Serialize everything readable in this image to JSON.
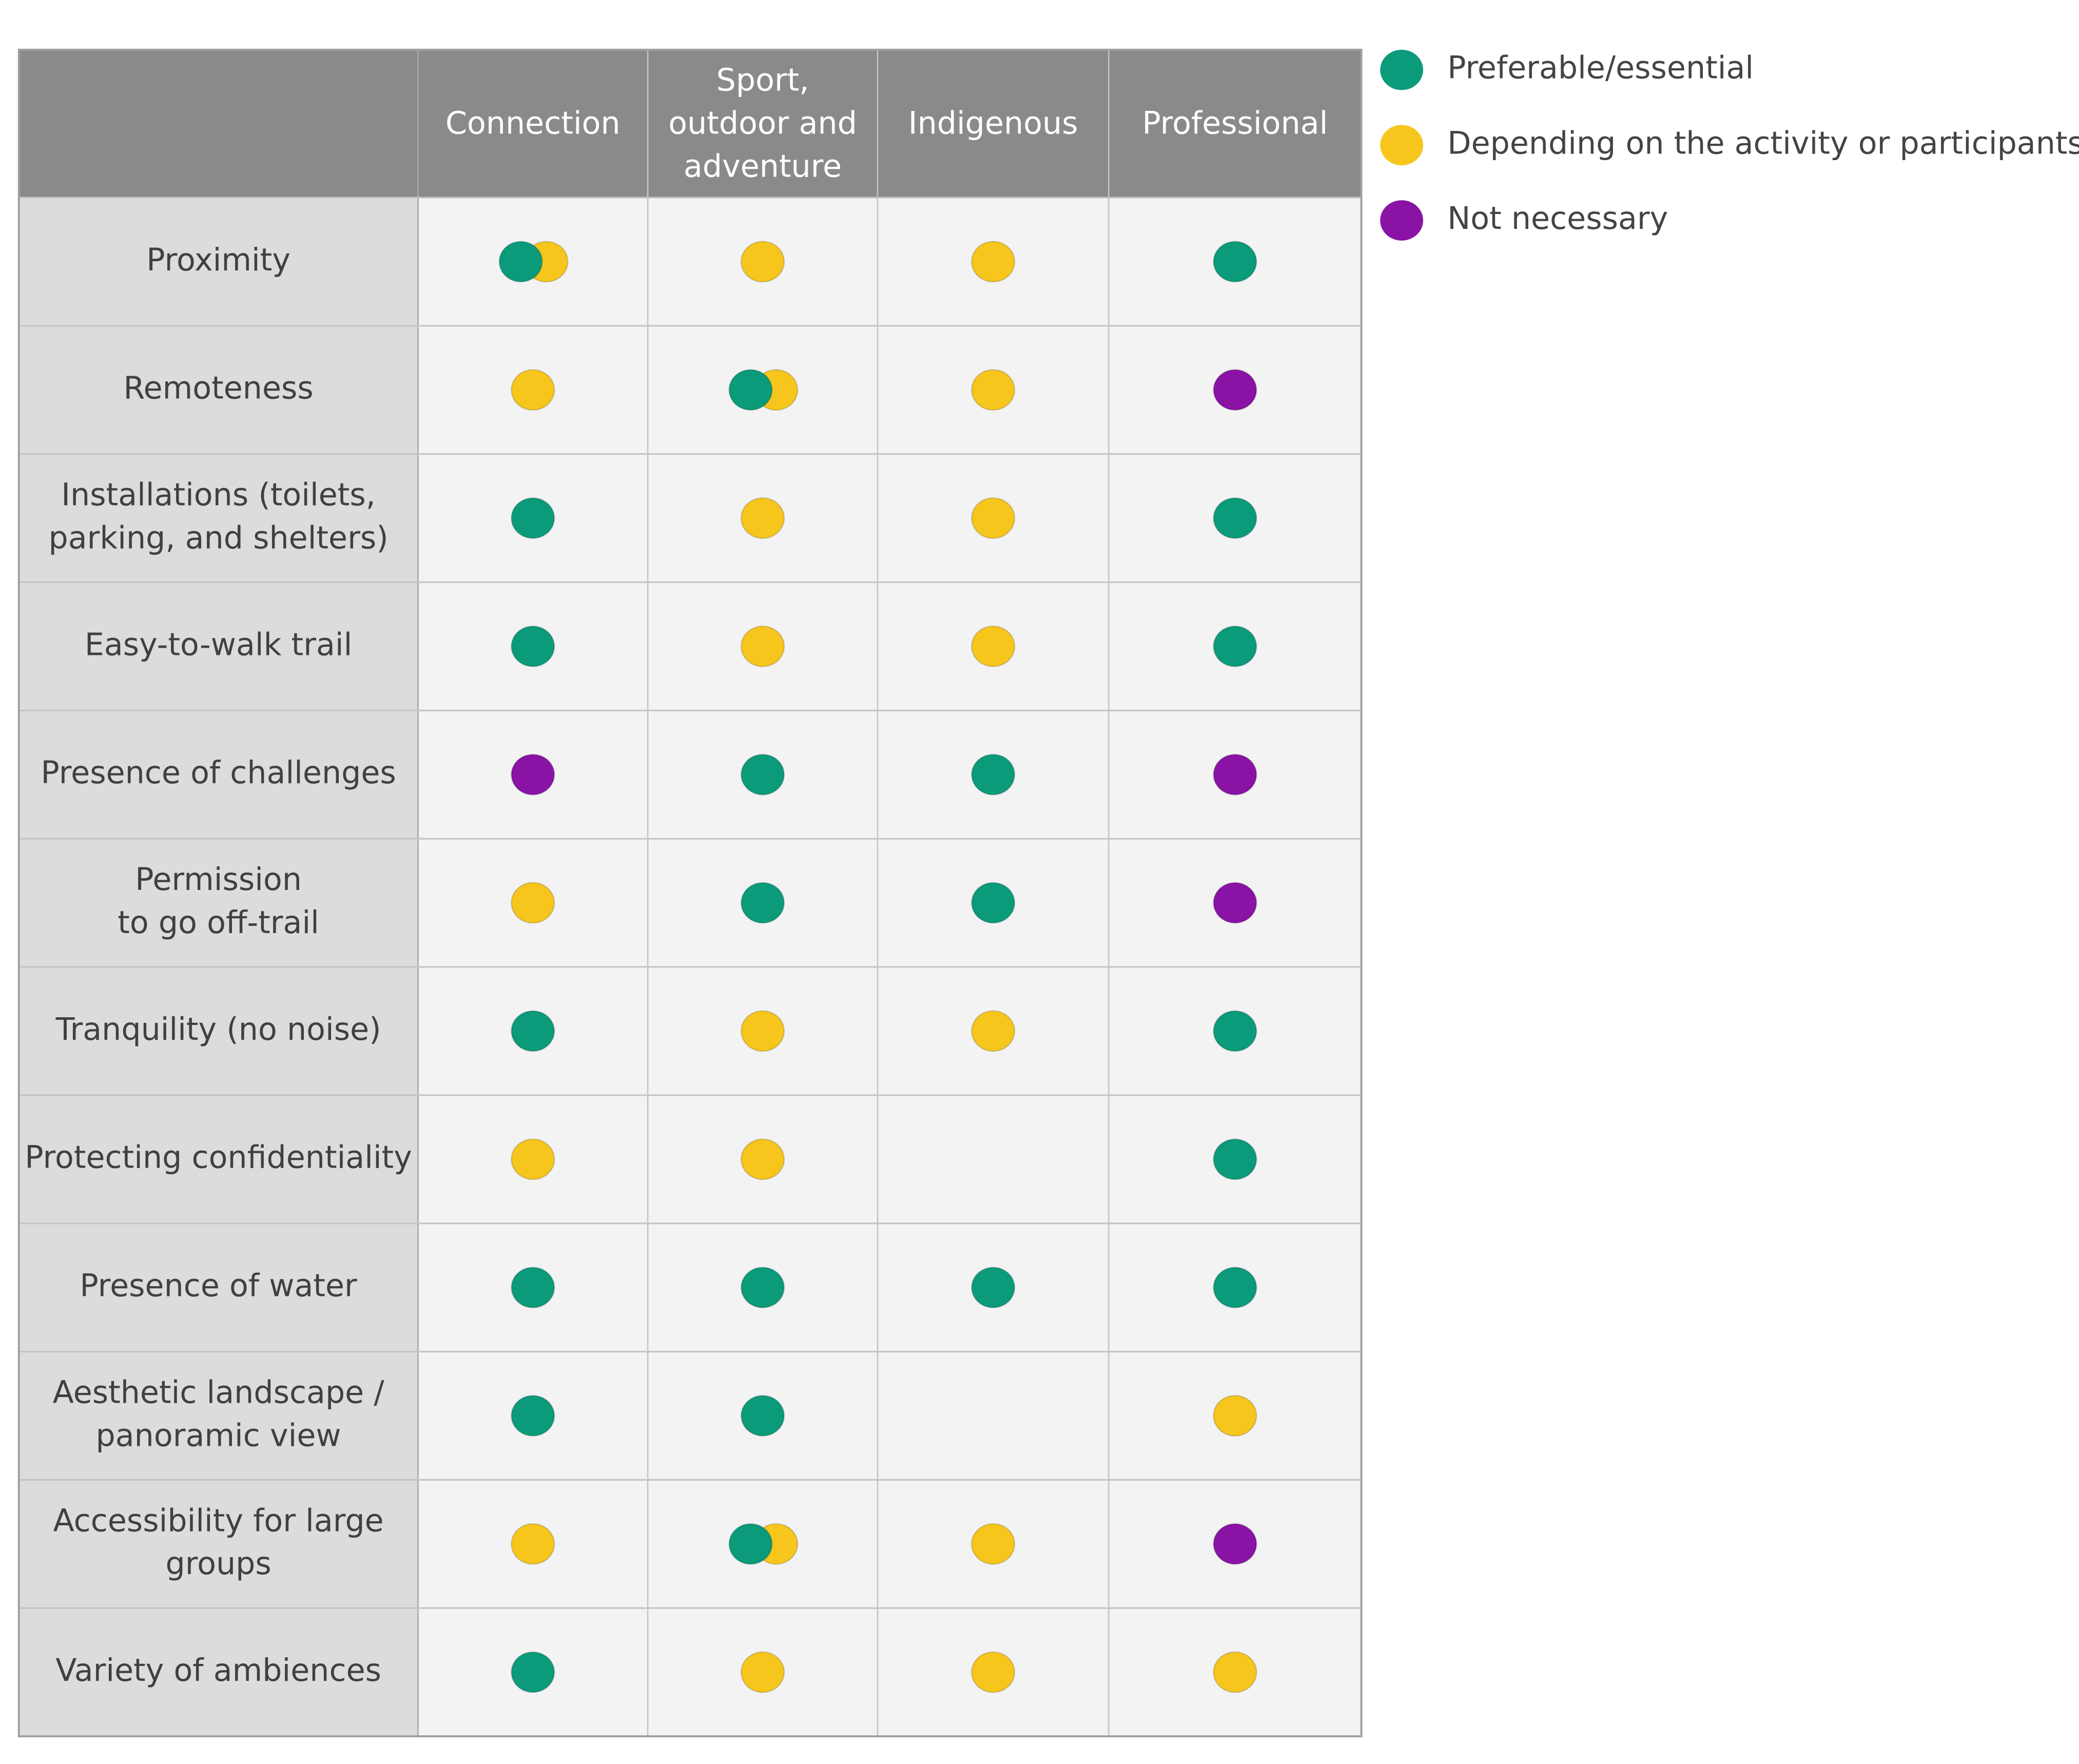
{
  "legend": [
    {
      "label": "Preferable/essential",
      "color": "#0b9b7b"
    },
    {
      "label": "Depending on the activity or participants",
      "color": "#f7c61c"
    },
    {
      "label": "Not necessary",
      "color": "#8a13a6"
    }
  ],
  "table": {
    "columns": [
      [
        "Connection"
      ],
      [
        "Sport,",
        "outdoor and",
        "adventure"
      ],
      [
        "Indigenous"
      ],
      [
        "Professional"
      ]
    ],
    "rows": [
      {
        "label": [
          "Proximity"
        ],
        "cells": [
          [
            0,
            1
          ],
          [
            1
          ],
          [
            1
          ],
          [
            0
          ]
        ]
      },
      {
        "label": [
          "Remoteness"
        ],
        "cells": [
          [
            1
          ],
          [
            0,
            1
          ],
          [
            1
          ],
          [
            2
          ]
        ]
      },
      {
        "label": [
          "Installations (toilets,",
          "parking, and shelters)"
        ],
        "cells": [
          [
            0
          ],
          [
            1
          ],
          [
            1
          ],
          [
            0
          ]
        ]
      },
      {
        "label": [
          "Easy-to-walk trail"
        ],
        "cells": [
          [
            0
          ],
          [
            1
          ],
          [
            1
          ],
          [
            0
          ]
        ]
      },
      {
        "label": [
          "Presence of challenges"
        ],
        "cells": [
          [
            2
          ],
          [
            0
          ],
          [
            0
          ],
          [
            2
          ]
        ]
      },
      {
        "label": [
          "Permission",
          "to go off-trail"
        ],
        "cells": [
          [
            1
          ],
          [
            0
          ],
          [
            0
          ],
          [
            2
          ]
        ]
      },
      {
        "label": [
          "Tranquility (no noise)"
        ],
        "cells": [
          [
            0
          ],
          [
            1
          ],
          [
            1
          ],
          [
            0
          ]
        ]
      },
      {
        "label": [
          "Protecting confidentiality"
        ],
        "cells": [
          [
            1
          ],
          [
            1
          ],
          [],
          [
            0
          ]
        ]
      },
      {
        "label": [
          "Presence of water"
        ],
        "cells": [
          [
            0
          ],
          [
            0
          ],
          [
            0
          ],
          [
            0
          ]
        ]
      },
      {
        "label": [
          "Aesthetic landscape /",
          "panoramic view"
        ],
        "cells": [
          [
            0
          ],
          [
            0
          ],
          [],
          [
            1
          ]
        ]
      },
      {
        "label": [
          "Accessibility for large",
          "groups"
        ],
        "cells": [
          [
            1
          ],
          [
            0,
            1
          ],
          [
            1
          ],
          [
            2
          ]
        ]
      },
      {
        "label": [
          "Variety of ambiences"
        ],
        "cells": [
          [
            0
          ],
          [
            1
          ],
          [
            1
          ],
          [
            1
          ]
        ]
      }
    ]
  }
}
